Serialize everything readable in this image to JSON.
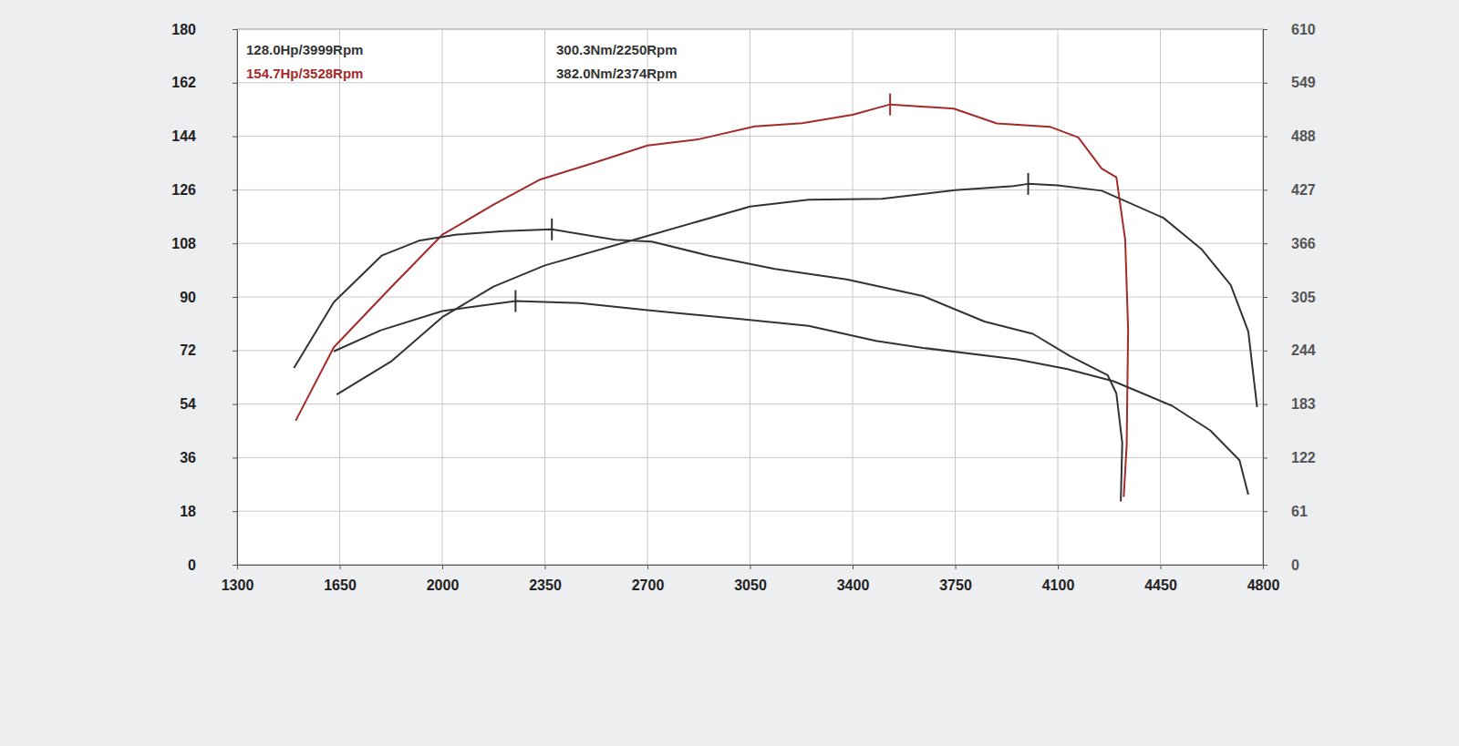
{
  "chart_data": {
    "type": "line",
    "xlim": [
      1300,
      4800
    ],
    "xticks": [
      1300,
      1650,
      2000,
      2350,
      2700,
      3050,
      3400,
      3750,
      4100,
      4450,
      4800
    ],
    "ylim": [
      0,
      180
    ],
    "yticks": [
      0,
      18,
      36,
      54,
      72,
      90,
      108,
      126,
      144,
      162,
      180
    ],
    "y2lim": [
      0,
      610
    ],
    "y2ticks": [
      0,
      61,
      122,
      183,
      244,
      305,
      366,
      427,
      488,
      549,
      610
    ],
    "grid": true,
    "legend": "top-left",
    "series": [
      {
        "name": "128.0Hp/3999Rpm",
        "color": "#333333",
        "x": [
          1640,
          1825,
          2000,
          2175,
          2350,
          2700,
          3050,
          3250,
          3500,
          3750,
          3950,
          3999,
          4100,
          4250,
          4460,
          4590,
          4690,
          4750,
          4780
        ],
        "values": [
          57.2,
          68.3,
          83.2,
          93.5,
          100.6,
          110.5,
          120.4,
          122.7,
          123,
          125.9,
          127.3,
          128.0,
          127.5,
          125.7,
          116.6,
          106.1,
          94,
          78.4,
          53
        ]
      },
      {
        "name": "154.7Hp/3528Rpm",
        "color": "#a32b2b",
        "x": [
          1500,
          1630,
          1825,
          2000,
          2175,
          2335,
          2518,
          2700,
          2875,
          3066,
          3228,
          3400,
          3528,
          3745,
          3892,
          4073,
          4170,
          4250,
          4300,
          4330,
          4340,
          4335,
          4325
        ],
        "values": [
          48.4,
          73.1,
          93.2,
          110.9,
          121,
          129.5,
          135.1,
          140.9,
          143,
          147.3,
          148.4,
          151.2,
          154.7,
          153.3,
          148.3,
          147.2,
          143.6,
          133.1,
          130.2,
          109.3,
          79,
          40,
          22.8
        ]
      },
      {
        "name": "300.3Nm/2250Rpm",
        "color": "#333333",
        "axis": "y2",
        "x": [
          1630,
          1790,
          2000,
          2250,
          2470,
          2700,
          3010,
          3250,
          3480,
          3640,
          3960,
          4130,
          4290,
          4490,
          4620,
          4720,
          4750
        ],
        "values": [
          243,
          267,
          289,
          300.3,
          298,
          290,
          280,
          272,
          255,
          247,
          234,
          223,
          209,
          181,
          153,
          119,
          80
        ]
      },
      {
        "name": "382.0Nm/2374Rpm",
        "color": "#333333",
        "axis": "y2",
        "x": [
          1494,
          1630,
          1793,
          1920,
          2050,
          2210,
          2374,
          2590,
          2715,
          2910,
          3135,
          3380,
          3640,
          3850,
          4015,
          4140,
          4270,
          4300,
          4320,
          4315
        ],
        "values": [
          224,
          299,
          352,
          369,
          376,
          380,
          382,
          370,
          368,
          352,
          337,
          325,
          306,
          277,
          263,
          238,
          216,
          195,
          139,
          72
        ]
      }
    ]
  }
}
